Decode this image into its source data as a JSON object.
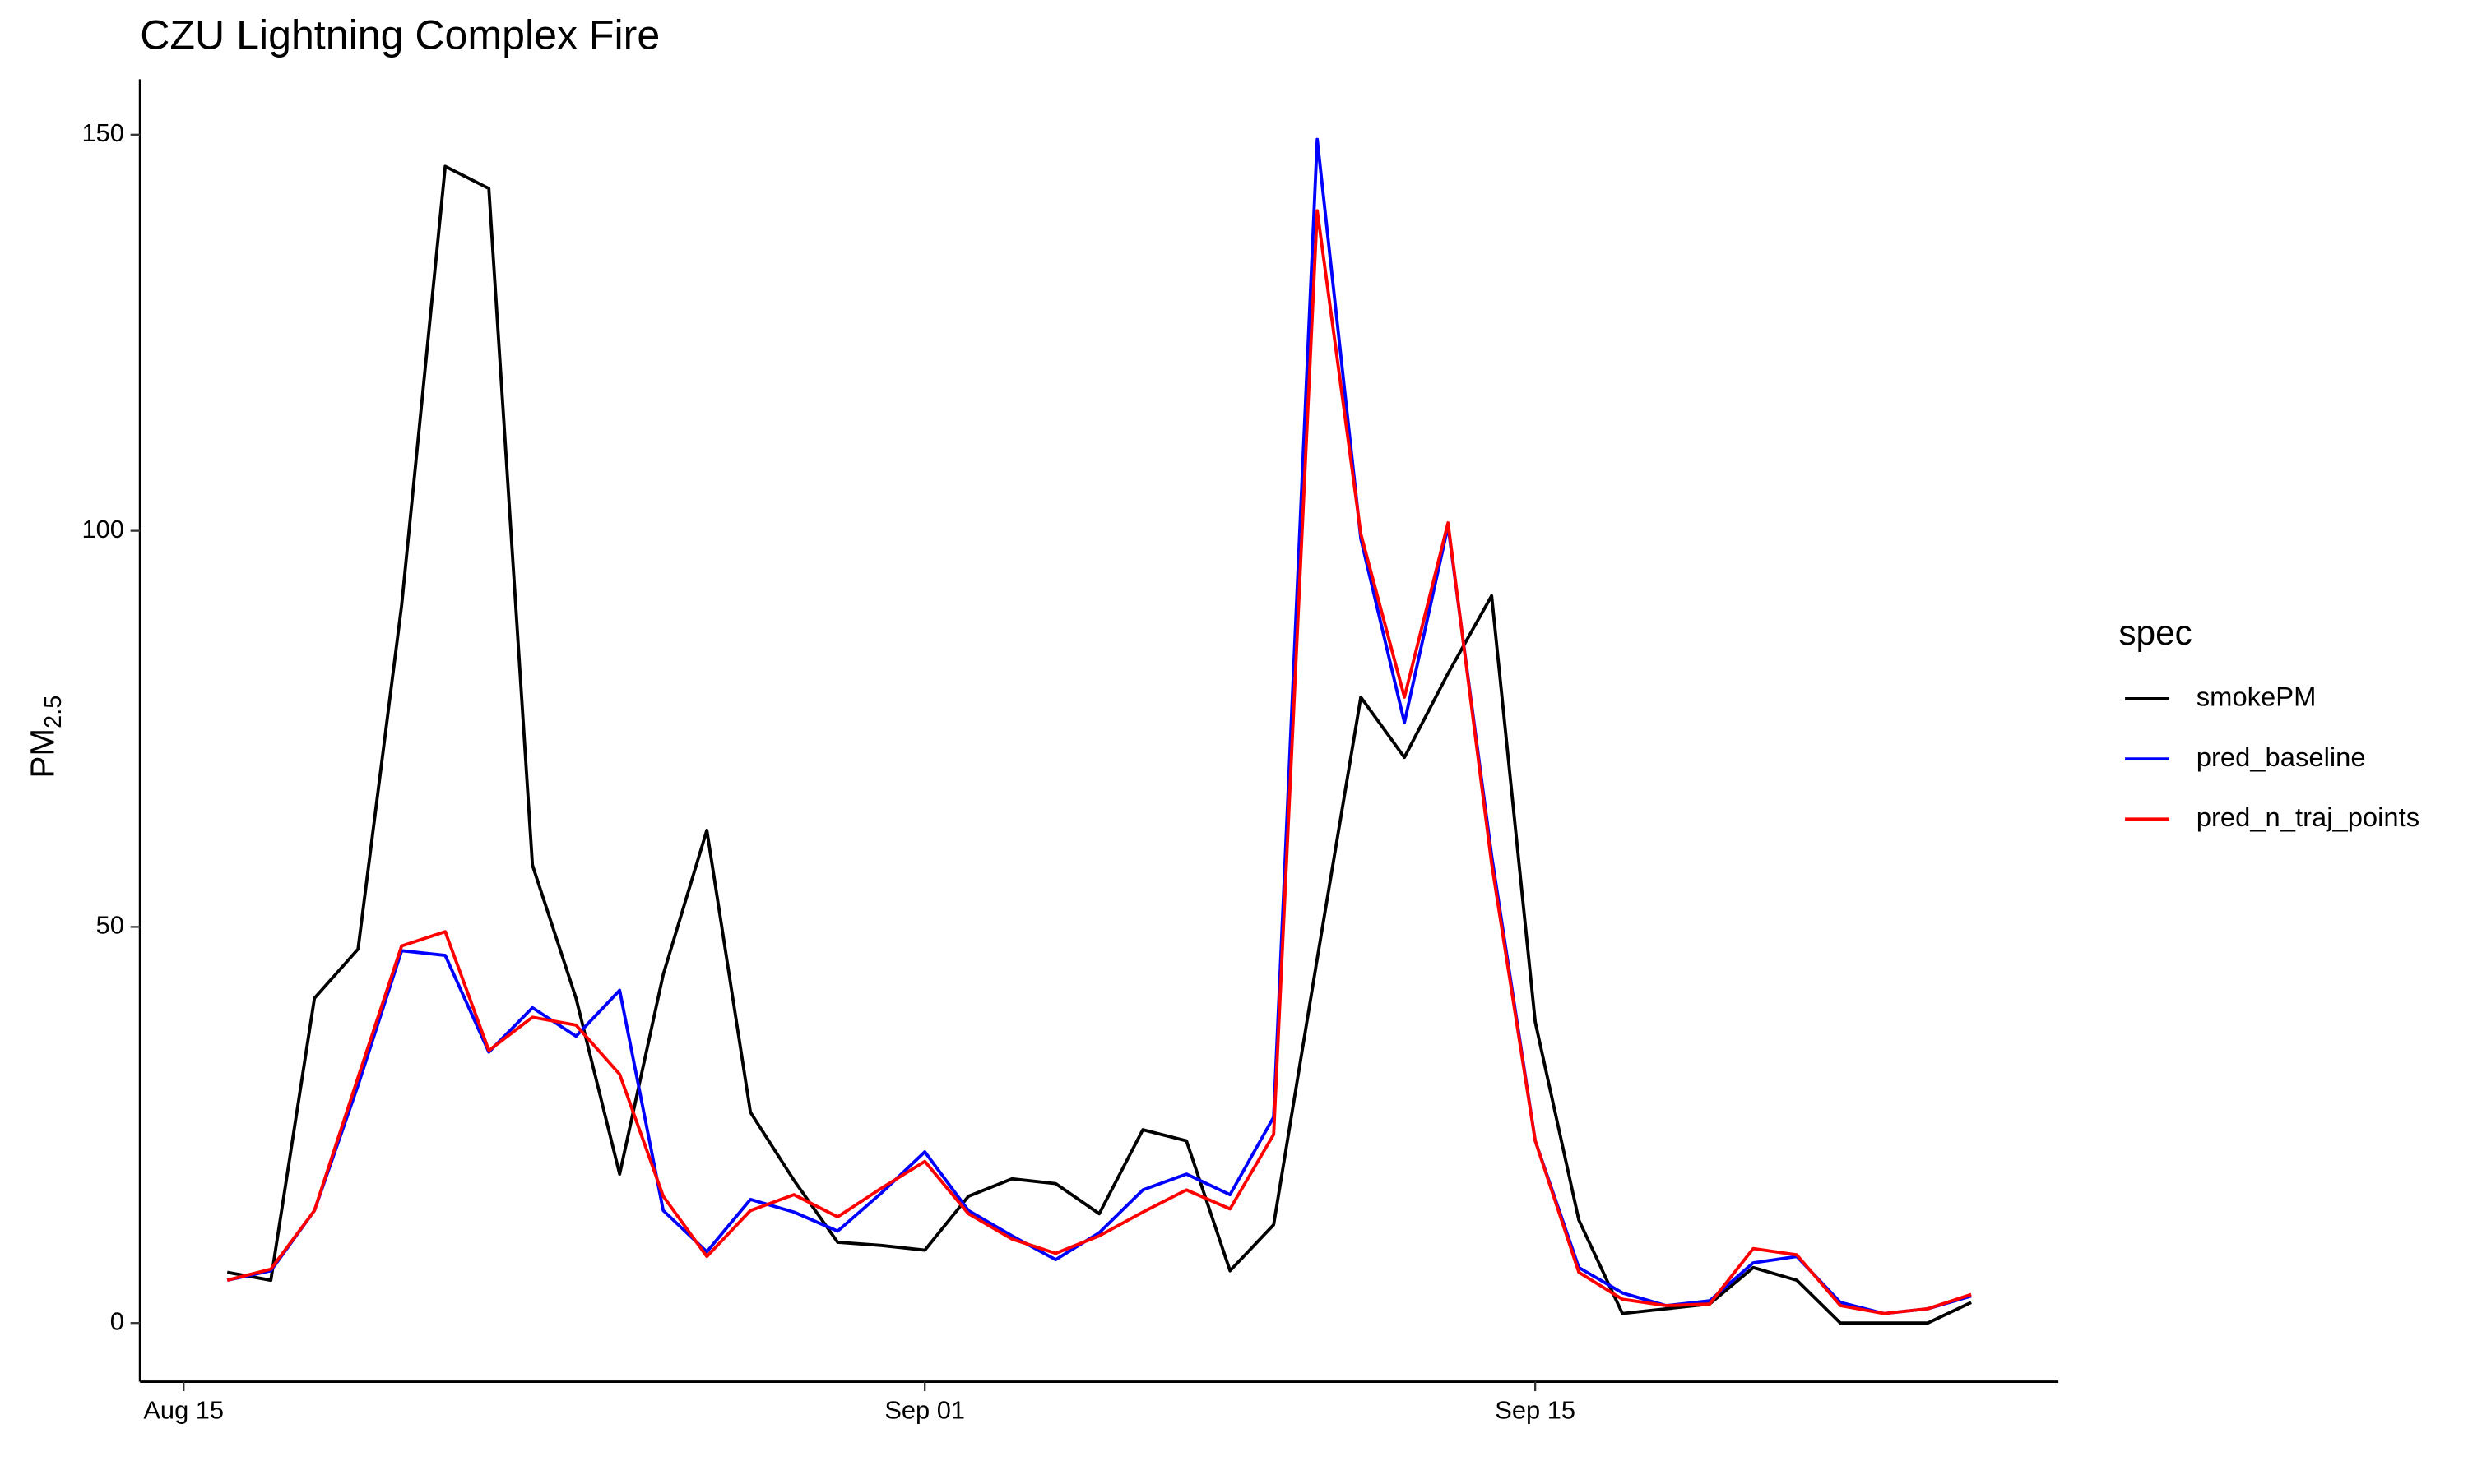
{
  "chart_data": {
    "type": "line",
    "title": "CZU Lightning Complex Fire",
    "y_label": "PM",
    "y_label_sub": "2.5",
    "legend_title": "spec",
    "legend": "right",
    "x": [
      "Aug 16",
      "Aug 17",
      "Aug 18",
      "Aug 19",
      "Aug 20",
      "Aug 21",
      "Aug 22",
      "Aug 23",
      "Aug 24",
      "Aug 25",
      "Aug 26",
      "Aug 27",
      "Aug 28",
      "Aug 29",
      "Aug 30",
      "Aug 31",
      "Sep 01",
      "Sep 02",
      "Sep 03",
      "Sep 04",
      "Sep 05",
      "Sep 06",
      "Sep 07",
      "Sep 08",
      "Sep 09",
      "Sep 10",
      "Sep 11",
      "Sep 12",
      "Sep 13",
      "Sep 14",
      "Sep 15",
      "Sep 16",
      "Sep 17",
      "Sep 18",
      "Sep 19",
      "Sep 20",
      "Sep 21",
      "Sep 22",
      "Sep 23",
      "Sep 24",
      "Sep 25"
    ],
    "series": [
      {
        "name": "smokePM",
        "color": "#000000",
        "values": [
          6.4,
          5.4,
          41,
          47.2,
          90.6,
          146,
          143.2,
          57.8,
          41,
          18.8,
          44,
          62.2,
          26.6,
          18,
          10.2,
          9.8,
          9.2,
          16,
          18.2,
          17.6,
          13.8,
          24.4,
          23,
          6.6,
          12.4,
          46,
          79,
          71.4,
          82,
          91.8,
          38,
          13,
          1.2,
          1.8,
          2.4,
          7,
          5.4,
          0,
          0,
          0,
          2.6
        ]
      },
      {
        "name": "pred_baseline",
        "color": "#0000ff",
        "values": [
          5.4,
          6.6,
          14.2,
          30,
          47,
          46.4,
          34.2,
          39.8,
          36.2,
          42,
          14.2,
          9,
          15.6,
          14,
          11.6,
          16.4,
          21.6,
          14.2,
          11,
          8,
          11.4,
          16.8,
          18.8,
          16.2,
          26,
          149.4,
          99,
          75.8,
          100.6,
          59,
          23,
          7,
          3.8,
          2.2,
          2.8,
          7.6,
          8.4,
          2.6,
          1.2,
          1.8,
          3.4
        ]
      },
      {
        "name": "pred_n_traj_points",
        "color": "#ff0000",
        "values": [
          5.4,
          6.8,
          14.2,
          31,
          47.6,
          49.4,
          34.4,
          38.6,
          37.6,
          31.4,
          16,
          8.4,
          14.2,
          16.2,
          13.4,
          17,
          20.4,
          13.8,
          10.6,
          8.8,
          11,
          14,
          16.8,
          14.4,
          23.8,
          140.4,
          99.6,
          79,
          101,
          58,
          23,
          6.4,
          3,
          2.2,
          2.4,
          9.4,
          8.6,
          2.2,
          1.2,
          1.8,
          3.6
        ]
      }
    ],
    "xlim": [
      "Aug 14",
      "Sep 27"
    ],
    "xticks": [
      "Aug 15",
      "Sep 01",
      "Sep 15"
    ],
    "ylim": [
      -7.4,
      157
    ],
    "yticks": [
      0,
      50,
      100,
      150
    ],
    "grid": false
  }
}
